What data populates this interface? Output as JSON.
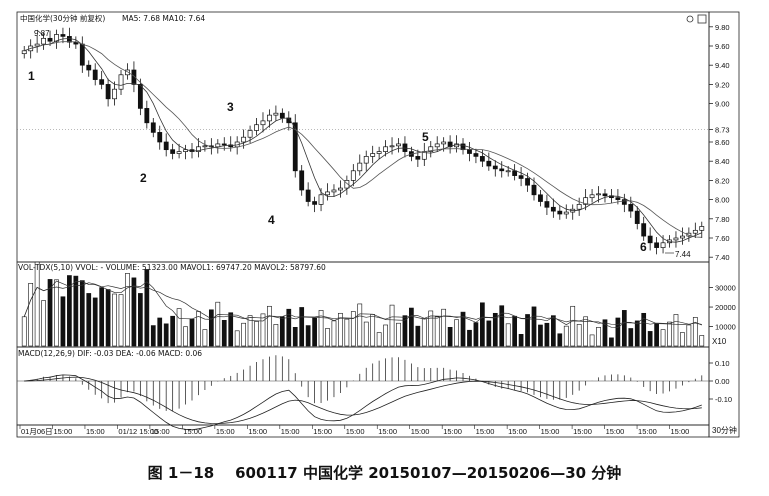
{
  "caption": {
    "figure_no": "图 1－18",
    "code": "600117",
    "name": "中国化学",
    "range": "20150107—20150206—30 分钟"
  },
  "chart_data": {
    "type": "candlestick",
    "price_panel": {
      "title": "中国化学(30分钟 前复权)",
      "ma_legend": "MA5: 7.68  MA10: 7.64",
      "ylim": [
        7.35,
        9.85
      ],
      "y_ticks": [
        "9.80",
        "9.60",
        "9.40",
        "9.20",
        "9.00",
        "8.73",
        "8.60",
        "8.40",
        "8.20",
        "8.00",
        "7.80",
        "7.60",
        "7.40"
      ],
      "high_label": "9.87",
      "low_label": "7.44",
      "annotations": [
        "1",
        "2",
        "3",
        "4",
        "5",
        "6"
      ],
      "close_path": [
        9.55,
        9.6,
        9.62,
        9.68,
        9.65,
        9.72,
        9.7,
        9.64,
        9.62,
        9.4,
        9.35,
        9.25,
        9.2,
        9.05,
        9.15,
        9.3,
        9.35,
        9.2,
        8.95,
        8.8,
        8.7,
        8.6,
        8.52,
        8.48,
        8.5,
        8.52,
        8.5,
        8.55,
        8.56,
        8.55,
        8.58,
        8.57,
        8.55,
        8.6,
        8.65,
        8.72,
        8.78,
        8.82,
        8.88,
        8.9,
        8.85,
        8.8,
        8.3,
        8.1,
        7.98,
        7.95,
        8.05,
        8.08,
        8.1,
        8.12,
        8.2,
        8.3,
        8.38,
        8.45,
        8.48,
        8.5,
        8.55,
        8.56,
        8.58,
        8.5,
        8.45,
        8.42,
        8.5,
        8.55,
        8.58,
        8.6,
        8.55,
        8.58,
        8.52,
        8.48,
        8.45,
        8.4,
        8.35,
        8.32,
        8.3,
        8.3,
        8.25,
        8.22,
        8.15,
        8.05,
        7.98,
        7.92,
        7.88,
        7.85,
        7.87,
        7.9,
        7.95,
        8.02,
        8.05,
        8.06,
        8.04,
        8.02,
        8.0,
        7.95,
        7.88,
        7.75,
        7.62,
        7.55,
        7.5,
        7.55,
        7.58,
        7.6,
        7.62,
        7.65,
        7.68,
        7.72
      ]
    },
    "volume_panel": {
      "title": "VOL-TDX(5,10)  VVOL: -  VOLUME: 51323.00  MAVOL1: 69747.20  MAVOL2: 58797.60",
      "y_ticks": [
        "30000",
        "20000",
        "10000"
      ],
      "unit": "X10"
    },
    "macd_panel": {
      "title": "MACD(12,26,9)  DIF: -0.03  DEA: -0.06  MACD: 0.06",
      "y_ticks": [
        "0.10",
        "0.00",
        "-0.10"
      ]
    },
    "x_axis": {
      "labels": [
        "01月06日",
        "15:00",
        "15:00",
        "01/12 15:00",
        "15:00",
        "15:00",
        "15:00",
        "15:00",
        "15:00",
        "15:00",
        "15:00",
        "15:00",
        "15:00",
        "15:00",
        "15:00",
        "15:00",
        "15:00",
        "15:00",
        "15:00",
        "15:00",
        "15:00"
      ],
      "period_label": "30分钟"
    }
  }
}
